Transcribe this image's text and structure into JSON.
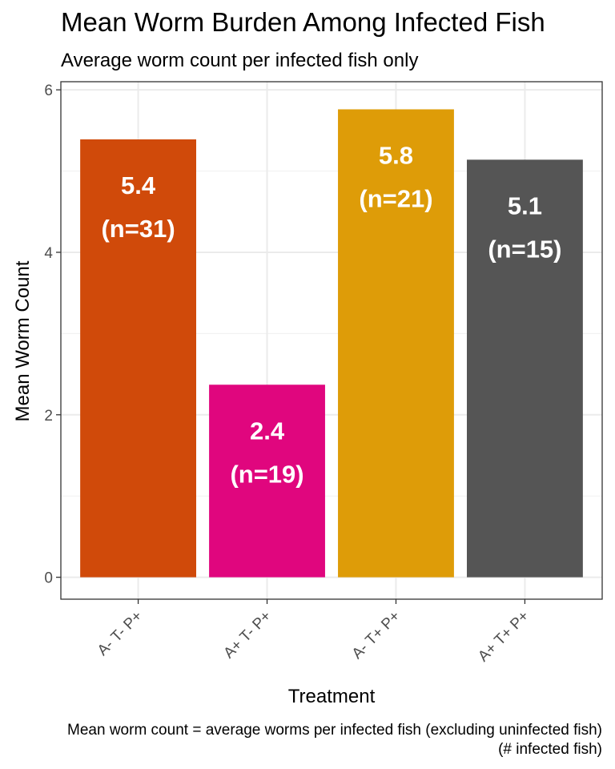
{
  "chart_data": {
    "type": "bar",
    "title": "Mean Worm Burden Among Infected Fish",
    "subtitle": "Average worm count per infected fish only",
    "xlabel": "Treatment",
    "ylabel": "Mean Worm Count",
    "categories": [
      "A- T- P+",
      "A+ T- P+",
      "A- T+ P+",
      "A+ T+ P+"
    ],
    "values": [
      5.39,
      2.37,
      5.76,
      5.14
    ],
    "value_labels": [
      "5.4",
      "2.4",
      "5.8",
      "5.1"
    ],
    "count_labels": [
      "(n=31)",
      "(n=19)",
      "(n=21)",
      "(n=15)"
    ],
    "colors": [
      "#D04A0A",
      "#E0067E",
      "#DE9C08",
      "#555555"
    ],
    "ylim": [
      -0.27,
      6.1
    ],
    "yticks": [
      0,
      2,
      4,
      6
    ],
    "grid": true,
    "caption_lines": [
      "Mean worm count = average worms per infected fish (excluding uninfected fish)",
      "(# infected fish)"
    ]
  }
}
